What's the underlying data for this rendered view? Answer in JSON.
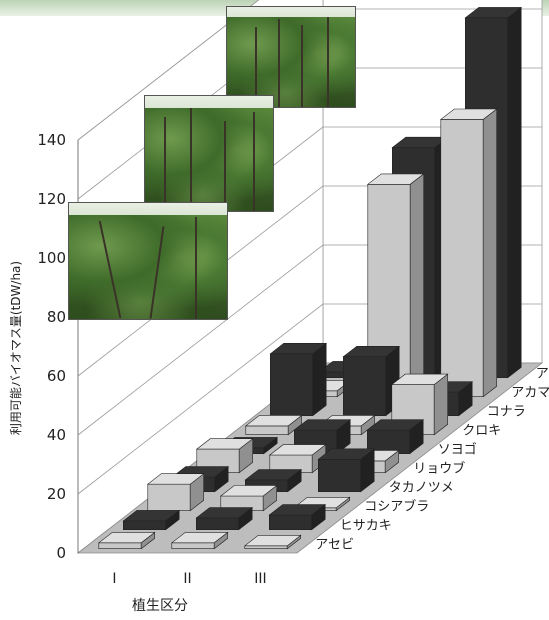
{
  "chart_data": {
    "type": "bar",
    "style": "3d",
    "x_axis_title": "植生区分",
    "categories": [
      "I",
      "II",
      "III"
    ],
    "y_axis_title": "利用可能バイオマス量(tDW/ha)",
    "ylim": [
      0,
      140
    ],
    "y_ticks": [
      0,
      20,
      40,
      60,
      80,
      100,
      120,
      140
    ],
    "grid": true,
    "series": [
      {
        "name": "アセビ",
        "color": "#c8c8c8",
        "values": [
          2,
          2,
          1
        ]
      },
      {
        "name": "ヒサカキ",
        "color": "#2e2e2e",
        "values": [
          3,
          4,
          5
        ]
      },
      {
        "name": "コシアブラ",
        "color": "#c8c8c8",
        "values": [
          9,
          5,
          1
        ]
      },
      {
        "name": "タカノツメ",
        "color": "#2e2e2e",
        "values": [
          5,
          4,
          11
        ]
      },
      {
        "name": "リョウブ",
        "color": "#c8c8c8",
        "values": [
          8,
          6,
          4
        ]
      },
      {
        "name": "ソヨゴ",
        "color": "#2e2e2e",
        "values": [
          2,
          8,
          8
        ]
      },
      {
        "name": "クロキ",
        "color": "#c8c8c8",
        "values": [
          3,
          3,
          17
        ]
      },
      {
        "name": "コナラ",
        "color": "#2e2e2e",
        "values": [
          21,
          20,
          8
        ]
      },
      {
        "name": "アカマツ以外",
        "color": "#c8c8c8",
        "values": [
          2,
          72,
          94
        ]
      },
      {
        "name": "アカマツ",
        "color": "#2e2e2e",
        "values": [
          2,
          78,
          122
        ]
      }
    ]
  }
}
